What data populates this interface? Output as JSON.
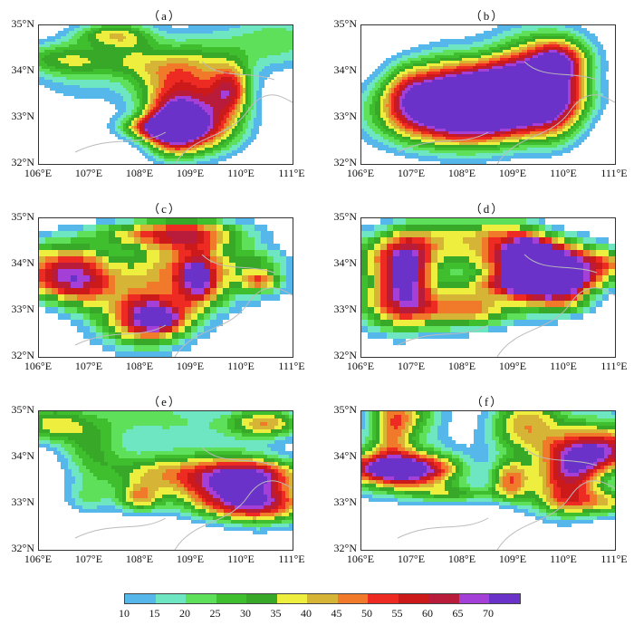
{
  "panels": [
    {
      "id": "a",
      "title": "（a）"
    },
    {
      "id": "b",
      "title": "（b）"
    },
    {
      "id": "c",
      "title": "（c）"
    },
    {
      "id": "d",
      "title": "（d）"
    },
    {
      "id": "e",
      "title": "（e）"
    },
    {
      "id": "f",
      "title": "（f）"
    }
  ],
  "lat_labels": [
    "35°N",
    "34°N",
    "33°N",
    "32°N"
  ],
  "lon_labels": [
    "106°E",
    "107°E",
    "108°E",
    "109°E",
    "110°E",
    "111°E"
  ],
  "colorbar": {
    "labels": [
      "10",
      "15",
      "20",
      "25",
      "30",
      "35",
      "40",
      "45",
      "50",
      "55",
      "60",
      "65",
      "70"
    ],
    "colors": [
      "#55b7ea",
      "#6ee6c2",
      "#5fe05a",
      "#3fbf2e",
      "#38a829",
      "#eeee3e",
      "#d6b435",
      "#f07a2a",
      "#ee2b22",
      "#cc1a1a",
      "#b81c3a",
      "#a440d8",
      "#6a32c8"
    ]
  }
}
